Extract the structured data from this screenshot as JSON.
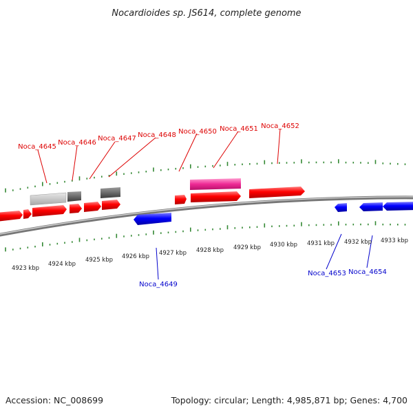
{
  "title": "Nocardioides sp. JS614, complete genome",
  "footer": {
    "accession": "Accession: NC_008699",
    "summary": "Topology: circular; Length: 4,985,871 bp; Genes: 4,700"
  },
  "colors": {
    "forward_gene": "#ff0000",
    "reverse_gene": "#0000ff",
    "tick": "#338833",
    "backbone": "#888888",
    "forward_label": "#dd0000",
    "reverse_label": "#0000cc"
  },
  "kbp_labels": [
    "4923 kbp",
    "4924 kbp",
    "4925 kbp",
    "4926 kbp",
    "4927 kbp",
    "4928 kbp",
    "4929 kbp",
    "4930 kbp",
    "4931 kbp",
    "4932 kbp",
    "4933 kbp"
  ],
  "gene_labels": {
    "forward": [
      "Noca_4645",
      "Noca_4646",
      "Noca_4647",
      "Noca_4648",
      "Noca_4650",
      "Noca_4651",
      "Noca_4652"
    ],
    "reverse": [
      "Noca_4649",
      "Noca_4653",
      "Noca_4654"
    ]
  }
}
